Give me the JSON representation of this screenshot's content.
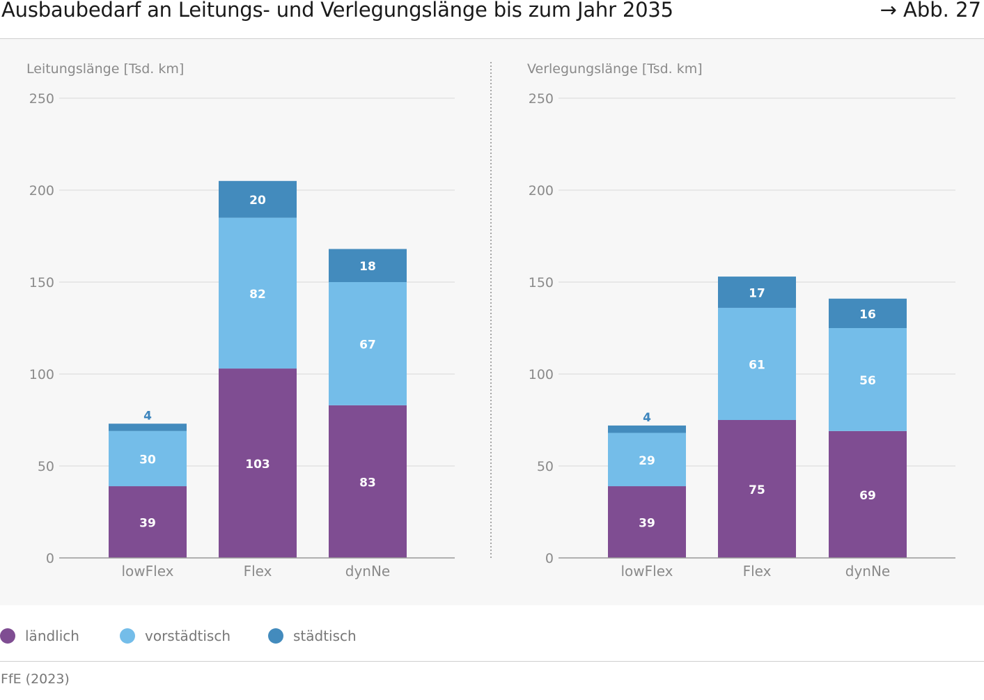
{
  "header": {
    "title": "Ausbaubedarf an Leitungs- und Verlegungslänge bis zum Jahr 2035",
    "figure_ref": "→ Abb. 27"
  },
  "legend": {
    "items": [
      {
        "label": "ländlich",
        "color": "#7f4d92"
      },
      {
        "label": "vorstädtisch",
        "color": "#74bde9"
      },
      {
        "label": "städtisch",
        "color": "#438bbd"
      }
    ]
  },
  "footer": {
    "source": "FfE (2023)"
  },
  "colors": {
    "laendlich": "#7f4d92",
    "vorstaedtisch": "#74bde9",
    "staedtisch": "#438bbd",
    "staedtisch_label": "#3d85bd"
  },
  "chart_data": [
    {
      "type": "bar",
      "stacked": true,
      "ylabel": "Leitungslänge [Tsd. km]",
      "ylim": [
        0,
        250
      ],
      "yticks": [
        0,
        50,
        100,
        150,
        200,
        250
      ],
      "categories": [
        "lowFlex",
        "Flex",
        "dynNe"
      ],
      "series": [
        {
          "name": "ländlich",
          "values": [
            39,
            103,
            83
          ]
        },
        {
          "name": "vorstädtisch",
          "values": [
            30,
            82,
            67
          ]
        },
        {
          "name": "städtisch",
          "values": [
            4,
            20,
            18
          ]
        }
      ],
      "grid": true
    },
    {
      "type": "bar",
      "stacked": true,
      "ylabel": "Verlegungslänge [Tsd. km]",
      "ylim": [
        0,
        250
      ],
      "yticks": [
        0,
        50,
        100,
        150,
        200,
        250
      ],
      "categories": [
        "lowFlex",
        "Flex",
        "dynNe"
      ],
      "series": [
        {
          "name": "ländlich",
          "values": [
            39,
            75,
            69
          ]
        },
        {
          "name": "vorstädtisch",
          "values": [
            29,
            61,
            56
          ]
        },
        {
          "name": "städtisch",
          "values": [
            4,
            17,
            16
          ]
        }
      ],
      "grid": true
    }
  ]
}
